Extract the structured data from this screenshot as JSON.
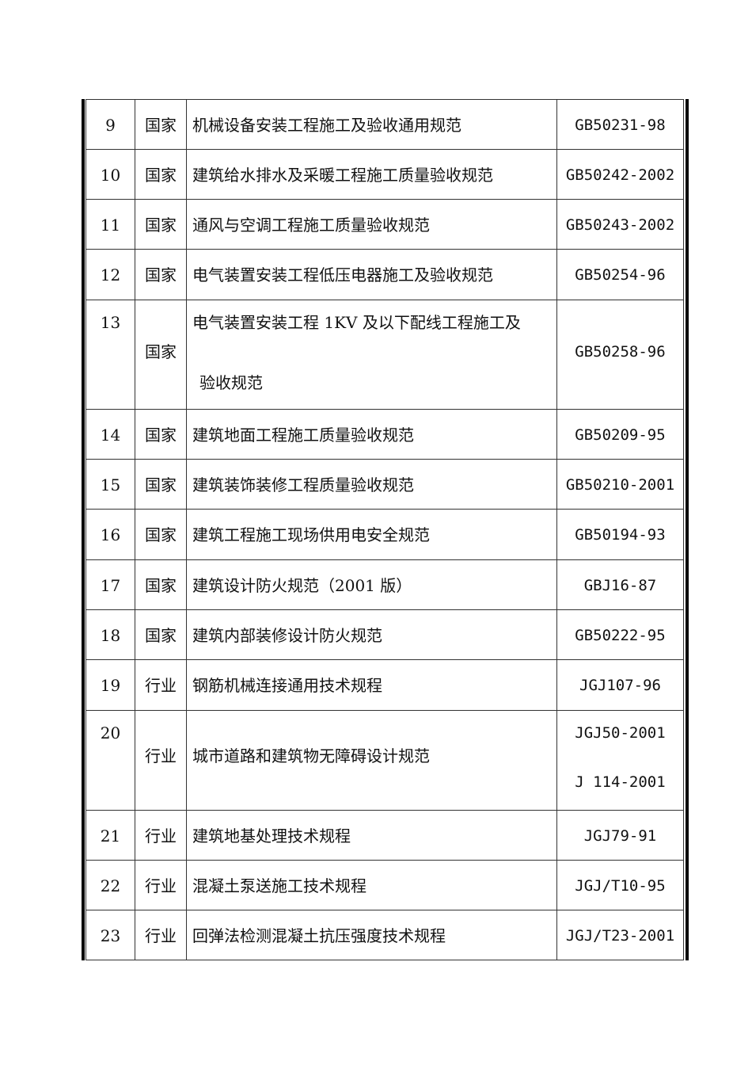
{
  "rows": [
    {
      "no": "9",
      "level": "国家",
      "name": [
        "机械设备安装工程施工及验收通用规范"
      ],
      "code": [
        "GB50231-98"
      ]
    },
    {
      "no": "10",
      "level": "国家",
      "name": [
        "建筑给水排水及采暖工程施工质量验收规范"
      ],
      "code": [
        "GB50242-2002"
      ]
    },
    {
      "no": "11",
      "level": "国家",
      "name": [
        "通风与空调工程施工质量验收规范"
      ],
      "code": [
        "GB50243-2002"
      ]
    },
    {
      "no": "12",
      "level": "国家",
      "name": [
        "电气装置安装工程低压电器施工及验收规范"
      ],
      "code": [
        "GB50254-96"
      ]
    },
    {
      "no": "13",
      "level": "国家",
      "name": [
        "电气装置安装工程 1KV 及以下配线工程施工及",
        "验收规范"
      ],
      "code": [
        "GB50258-96"
      ]
    },
    {
      "no": "14",
      "level": "国家",
      "name": [
        "建筑地面工程施工质量验收规范"
      ],
      "code": [
        "GB50209-95"
      ]
    },
    {
      "no": "15",
      "level": "国家",
      "name": [
        "建筑装饰装修工程质量验收规范"
      ],
      "code": [
        "GB50210-2001"
      ]
    },
    {
      "no": "16",
      "level": "国家",
      "name": [
        "建筑工程施工现场供用电安全规范"
      ],
      "code": [
        "GB50194-93"
      ]
    },
    {
      "no": "17",
      "level": "国家",
      "name": [
        "建筑设计防火规范（2001 版）"
      ],
      "code": [
        "GBJ16-87"
      ]
    },
    {
      "no": "18",
      "level": "国家",
      "name": [
        "建筑内部装修设计防火规范"
      ],
      "code": [
        "GB50222-95"
      ]
    },
    {
      "no": "19",
      "level": "行业",
      "name": [
        "钢筋机械连接通用技术规程"
      ],
      "code": [
        "JGJ107-96"
      ]
    },
    {
      "no": "20",
      "level": "行业",
      "name": [
        "城市道路和建筑物无障碍设计规范"
      ],
      "code": [
        "JGJ50-2001",
        "J 114-2001"
      ]
    },
    {
      "no": "21",
      "level": "行业",
      "name": [
        "建筑地基处理技术规程"
      ],
      "code": [
        "JGJ79-91"
      ]
    },
    {
      "no": "22",
      "level": "行业",
      "name": [
        "混凝土泵送施工技术规程"
      ],
      "code": [
        "JGJ/T10-95"
      ]
    },
    {
      "no": "23",
      "level": "行业",
      "name": [
        "回弹法检测混凝土抗压强度技术规程"
      ],
      "code": [
        "JGJ/T23-2001"
      ]
    }
  ]
}
